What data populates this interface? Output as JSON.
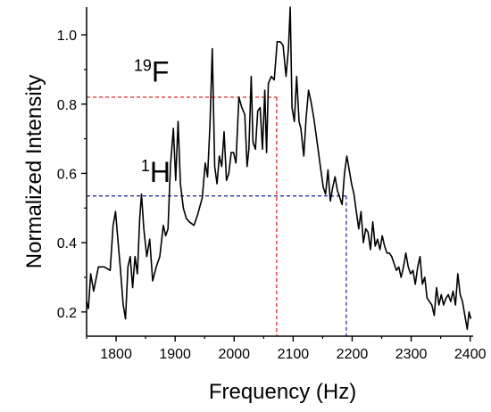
{
  "chart_data": {
    "type": "line",
    "title": "",
    "xlabel": "Frequency (Hz)",
    "ylabel": "Normalized Intensity",
    "xlim": [
      1750,
      2405
    ],
    "ylim": [
      0.13,
      1.08
    ],
    "x_ticks": [
      1800,
      1900,
      2000,
      2100,
      2200,
      2300,
      2400
    ],
    "y_ticks": [
      0.2,
      0.4,
      0.6,
      0.8,
      1.0
    ],
    "x_tick_labels": [
      "1800",
      "1900",
      "2000",
      "2100",
      "2200",
      "2300",
      "2400"
    ],
    "y_tick_labels": [
      "0.2",
      "0.4",
      "0.6",
      "0.8",
      "1.0"
    ],
    "grid": false,
    "series": [
      {
        "color": "#000000",
        "points": [
          [
            1750,
            0.23
          ],
          [
            1753,
            0.21
          ],
          [
            1757,
            0.31
          ],
          [
            1762,
            0.26
          ],
          [
            1770,
            0.33
          ],
          [
            1780,
            0.33
          ],
          [
            1790,
            0.32
          ],
          [
            1795,
            0.45
          ],
          [
            1799,
            0.49
          ],
          [
            1803,
            0.41
          ],
          [
            1807,
            0.33
          ],
          [
            1812,
            0.22
          ],
          [
            1816,
            0.18
          ],
          [
            1820,
            0.33
          ],
          [
            1824,
            0.36
          ],
          [
            1828,
            0.27
          ],
          [
            1832,
            0.36
          ],
          [
            1836,
            0.31
          ],
          [
            1840,
            0.47
          ],
          [
            1843,
            0.54
          ],
          [
            1847,
            0.44
          ],
          [
            1852,
            0.36
          ],
          [
            1857,
            0.41
          ],
          [
            1862,
            0.29
          ],
          [
            1868,
            0.33
          ],
          [
            1874,
            0.36
          ],
          [
            1880,
            0.45
          ],
          [
            1884,
            0.42
          ],
          [
            1888,
            0.44
          ],
          [
            1892,
            0.62
          ],
          [
            1897,
            0.73
          ],
          [
            1901,
            0.58
          ],
          [
            1905,
            0.75
          ],
          [
            1909,
            0.57
          ],
          [
            1914,
            0.5
          ],
          [
            1919,
            0.47
          ],
          [
            1924,
            0.46
          ],
          [
            1932,
            0.45
          ],
          [
            1938,
            0.48
          ],
          [
            1946,
            0.53
          ],
          [
            1951,
            0.63
          ],
          [
            1955,
            0.59
          ],
          [
            1959,
            0.74
          ],
          [
            1963,
            0.96
          ],
          [
            1967,
            0.62
          ],
          [
            1971,
            0.57
          ],
          [
            1975,
            0.65
          ],
          [
            1979,
            0.62
          ],
          [
            1983,
            0.72
          ],
          [
            1987,
            0.58
          ],
          [
            1991,
            0.6
          ],
          [
            1995,
            0.66
          ],
          [
            1999,
            0.66
          ],
          [
            2003,
            0.63
          ],
          [
            2008,
            0.82
          ],
          [
            2013,
            0.79
          ],
          [
            2018,
            0.77
          ],
          [
            2022,
            0.62
          ],
          [
            2025,
            0.67
          ],
          [
            2029,
            0.88
          ],
          [
            2032,
            0.69
          ],
          [
            2036,
            0.67
          ],
          [
            2040,
            0.78
          ],
          [
            2044,
            0.79
          ],
          [
            2048,
            0.67
          ],
          [
            2052,
            0.84
          ],
          [
            2055,
            0.66
          ],
          [
            2058,
            0.86
          ],
          [
            2063,
            0.88
          ],
          [
            2068,
            0.87
          ],
          [
            2073,
            0.98
          ],
          [
            2078,
            0.98
          ],
          [
            2083,
            0.97
          ],
          [
            2088,
            0.88
          ],
          [
            2092,
            0.96
          ],
          [
            2095,
            1.08
          ],
          [
            2098,
            0.79
          ],
          [
            2102,
            0.75
          ],
          [
            2106,
            0.88
          ],
          [
            2110,
            0.75
          ],
          [
            2113,
            0.73
          ],
          [
            2118,
            0.65
          ],
          [
            2122,
            0.76
          ],
          [
            2126,
            0.84
          ],
          [
            2130,
            0.81
          ],
          [
            2135,
            0.76
          ],
          [
            2139,
            0.71
          ],
          [
            2143,
            0.66
          ],
          [
            2147,
            0.61
          ],
          [
            2151,
            0.56
          ],
          [
            2155,
            0.54
          ],
          [
            2159,
            0.61
          ],
          [
            2163,
            0.52
          ],
          [
            2167,
            0.56
          ],
          [
            2171,
            0.59
          ],
          [
            2175,
            0.55
          ],
          [
            2179,
            0.53
          ],
          [
            2183,
            0.51
          ],
          [
            2187,
            0.6
          ],
          [
            2191,
            0.65
          ],
          [
            2195,
            0.61
          ],
          [
            2199,
            0.57
          ],
          [
            2203,
            0.54
          ],
          [
            2207,
            0.49
          ],
          [
            2211,
            0.44
          ],
          [
            2215,
            0.49
          ],
          [
            2219,
            0.4
          ],
          [
            2223,
            0.44
          ],
          [
            2227,
            0.43
          ],
          [
            2231,
            0.38
          ],
          [
            2235,
            0.46
          ],
          [
            2239,
            0.39
          ],
          [
            2243,
            0.41
          ],
          [
            2247,
            0.38
          ],
          [
            2251,
            0.42
          ],
          [
            2255,
            0.39
          ],
          [
            2259,
            0.37
          ],
          [
            2263,
            0.37
          ],
          [
            2267,
            0.36
          ],
          [
            2271,
            0.34
          ],
          [
            2275,
            0.32
          ],
          [
            2279,
            0.33
          ],
          [
            2283,
            0.3
          ],
          [
            2287,
            0.33
          ],
          [
            2291,
            0.37
          ],
          [
            2295,
            0.33
          ],
          [
            2299,
            0.31
          ],
          [
            2303,
            0.32
          ],
          [
            2307,
            0.28
          ],
          [
            2311,
            0.33
          ],
          [
            2315,
            0.36
          ],
          [
            2319,
            0.28
          ],
          [
            2323,
            0.3
          ],
          [
            2327,
            0.24
          ],
          [
            2331,
            0.23
          ],
          [
            2335,
            0.22
          ],
          [
            2339,
            0.19
          ],
          [
            2343,
            0.27
          ],
          [
            2347,
            0.22
          ],
          [
            2351,
            0.25
          ],
          [
            2355,
            0.22
          ],
          [
            2359,
            0.24
          ],
          [
            2363,
            0.25
          ],
          [
            2367,
            0.23
          ],
          [
            2371,
            0.26
          ],
          [
            2375,
            0.22
          ],
          [
            2379,
            0.31
          ],
          [
            2383,
            0.25
          ],
          [
            2387,
            0.23
          ],
          [
            2391,
            0.19
          ],
          [
            2395,
            0.15
          ],
          [
            2398,
            0.2
          ],
          [
            2401,
            0.18
          ]
        ]
      }
    ],
    "annotations": [
      {
        "label_super": "19",
        "label_main": "F",
        "color": "#e8272a",
        "x": 2072,
        "y": 0.82,
        "label_at": [
          1830,
          0.865
        ]
      },
      {
        "label_super": "1",
        "label_main": "H",
        "color": "#2b2ea8",
        "x": 2190,
        "y": 0.535,
        "label_at": [
          1842,
          0.575
        ]
      }
    ]
  }
}
